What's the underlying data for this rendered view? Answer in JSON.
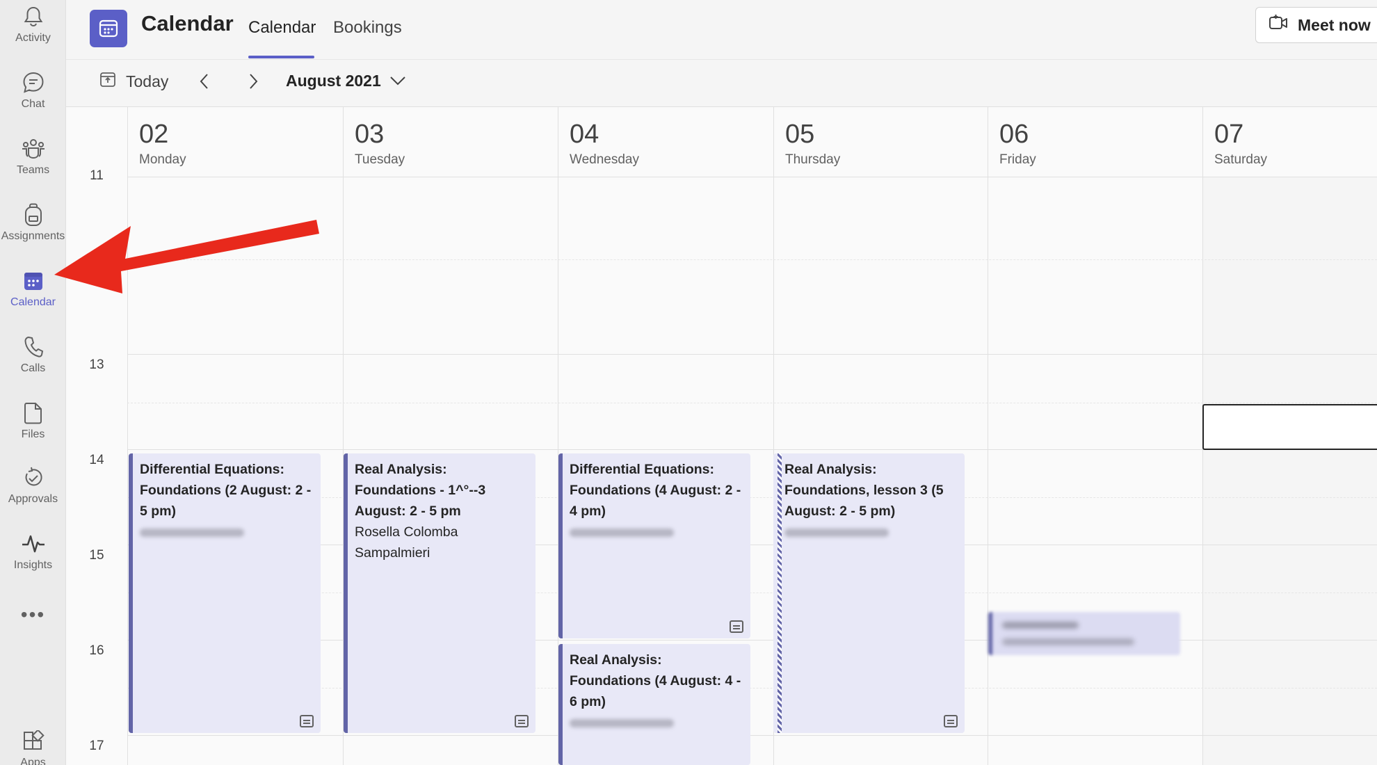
{
  "rail": {
    "items": [
      {
        "label": "Activity",
        "icon": "bell-icon"
      },
      {
        "label": "Chat",
        "icon": "chat-icon"
      },
      {
        "label": "Teams",
        "icon": "teams-icon"
      },
      {
        "label": "Assignments",
        "icon": "backpack-icon"
      },
      {
        "label": "Calendar",
        "icon": "calendar-icon"
      },
      {
        "label": "Calls",
        "icon": "phone-icon"
      },
      {
        "label": "Files",
        "icon": "file-icon"
      },
      {
        "label": "Approvals",
        "icon": "approvals-icon"
      },
      {
        "label": "Insights",
        "icon": "pulse-icon"
      },
      {
        "label": "Apps",
        "icon": "apps-icon"
      }
    ],
    "more_label": "•••",
    "active_color": "#5b5fc7"
  },
  "header": {
    "title": "Calendar",
    "tabs": [
      {
        "label": "Calendar"
      },
      {
        "label": "Bookings"
      }
    ],
    "meet_now_label": "Meet now"
  },
  "toolbar": {
    "today_label": "Today",
    "month_label": "August 2021"
  },
  "days": [
    {
      "num": "02",
      "name": "Monday"
    },
    {
      "num": "03",
      "name": "Tuesday"
    },
    {
      "num": "04",
      "name": "Wednesday"
    },
    {
      "num": "05",
      "name": "Thursday"
    },
    {
      "num": "06",
      "name": "Friday"
    },
    {
      "num": "07",
      "name": "Saturday"
    }
  ],
  "hours": [
    "11",
    "13",
    "14",
    "15",
    "16",
    "17"
  ],
  "events": [
    {
      "title": "Differential Equations: Foundations (2 August: 2 - 5 pm)",
      "subtitle": ""
    },
    {
      "title": "Real Analysis: Foundations - 1^°--3 August: 2 - 5 pm",
      "subtitle": "Rosella Colomba Sampalmieri"
    },
    {
      "title": "Differential Equations: Foundations (4 August: 2 - 4 pm)",
      "subtitle": ""
    },
    {
      "title": "Real Analysis: Foundations (4 August: 4 - 6 pm)",
      "subtitle": ""
    },
    {
      "title": "Real Analysis: Foundations, lesson 3 (5 August: 2 - 5 pm)",
      "subtitle": ""
    }
  ],
  "colors": {
    "brand": "#5b5fc7",
    "event_bg": "#e8e8f7",
    "event_accent": "#6264a7",
    "annotation_arrow": "#e8291c"
  }
}
